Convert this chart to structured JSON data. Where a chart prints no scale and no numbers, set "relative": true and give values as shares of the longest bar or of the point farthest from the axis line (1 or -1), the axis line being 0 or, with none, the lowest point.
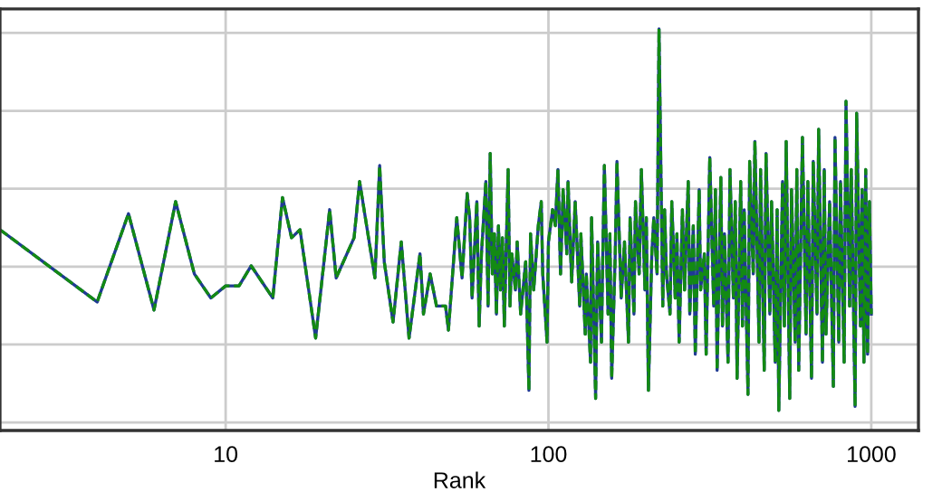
{
  "chart_data": {
    "type": "line",
    "xlabel": "Rank",
    "log": "x",
    "relative": true,
    "grid": true,
    "legend": false,
    "tick_labels": "x",
    "xlim": [
      2,
      1400
    ],
    "xticks": [
      10,
      100,
      1000
    ],
    "x": [
      2,
      4,
      5,
      6,
      7,
      8,
      9,
      10,
      11,
      12,
      14,
      15,
      16,
      17,
      19,
      21,
      22,
      25,
      26,
      29,
      30,
      31,
      33,
      35,
      37,
      40,
      41,
      43,
      45,
      48,
      49,
      52,
      54,
      56,
      57,
      58,
      60,
      61,
      62,
      64,
      65,
      66,
      67,
      68,
      69,
      70,
      71,
      72,
      73,
      75,
      76,
      77,
      79,
      80,
      82,
      85,
      87,
      88,
      90,
      93,
      95,
      96,
      99,
      100,
      103,
      105,
      107,
      109,
      111,
      114,
      115,
      118,
      121,
      125,
      126,
      130,
      131,
      135,
      136,
      140,
      142,
      146,
      147,
      149,
      153,
      155,
      157,
      161,
      163,
      168,
      172,
      177,
      179,
      184,
      186,
      191,
      194,
      199,
      201,
      204,
      209,
      212,
      217,
      220,
      226,
      229,
      232,
      238,
      241,
      247,
      250,
      254,
      260,
      264,
      271,
      274,
      281,
      285,
      293,
      296,
      304,
      308,
      316,
      325,
      329,
      333,
      342,
      346,
      351,
      360,
      365,
      374,
      379,
      384,
      394,
      399,
      404,
      415,
      420,
      431,
      436,
      449,
      454,
      466,
      472,
      485,
      491,
      504,
      511,
      517,
      531,
      538,
      545,
      559,
      566,
      581,
      588,
      596,
      612,
      628,
      636,
      653,
      661,
      679,
      687,
      706,
      715,
      724,
      743,
      763,
      772,
      793,
      803,
      824,
      835,
      857,
      867,
      891,
      901,
      926,
      937,
      949,
      961,
      974,
      987,
      1000
    ],
    "series": [
      {
        "color": "#1f3a93",
        "line_style": "solid",
        "values": [
          0.5,
          0.32,
          0.54,
          0.3,
          0.57,
          0.39,
          0.33,
          0.36,
          0.36,
          0.41,
          0.33,
          0.58,
          0.48,
          0.5,
          0.23,
          0.55,
          0.38,
          0.48,
          0.62,
          0.38,
          0.66,
          0.42,
          0.27,
          0.47,
          0.23,
          0.44,
          0.29,
          0.39,
          0.31,
          0.31,
          0.25,
          0.53,
          0.38,
          0.59,
          0.53,
          0.33,
          0.57,
          0.26,
          0.44,
          0.62,
          0.31,
          0.69,
          0.39,
          0.49,
          0.29,
          0.51,
          0.35,
          0.48,
          0.26,
          0.65,
          0.31,
          0.44,
          0.35,
          0.47,
          0.29,
          0.42,
          0.1,
          0.49,
          0.35,
          0.51,
          0.57,
          0.39,
          0.22,
          0.47,
          0.55,
          0.51,
          0.65,
          0.39,
          0.6,
          0.44,
          0.62,
          0.37,
          0.57,
          0.31,
          0.49,
          0.24,
          0.39,
          0.17,
          0.53,
          0.08,
          0.47,
          0.22,
          0.39,
          0.66,
          0.29,
          0.49,
          0.13,
          0.44,
          0.67,
          0.33,
          0.47,
          0.22,
          0.53,
          0.29,
          0.57,
          0.39,
          0.65,
          0.35,
          0.53,
          0.1,
          0.44,
          0.53,
          0.39,
          1.0,
          0.31,
          0.55,
          0.39,
          0.29,
          0.57,
          0.33,
          0.49,
          0.22,
          0.55,
          0.35,
          0.62,
          0.29,
          0.51,
          0.19,
          0.6,
          0.35,
          0.44,
          0.19,
          0.68,
          0.31,
          0.6,
          0.15,
          0.63,
          0.26,
          0.49,
          0.17,
          0.65,
          0.33,
          0.57,
          0.13,
          0.62,
          0.26,
          0.55,
          0.09,
          0.67,
          0.39,
          0.72,
          0.22,
          0.65,
          0.15,
          0.69,
          0.29,
          0.57,
          0.17,
          0.55,
          0.05,
          0.62,
          0.26,
          0.72,
          0.08,
          0.6,
          0.22,
          0.65,
          0.15,
          0.73,
          0.24,
          0.62,
          0.13,
          0.67,
          0.29,
          0.75,
          0.17,
          0.65,
          0.24,
          0.57,
          0.11,
          0.73,
          0.22,
          0.62,
          0.17,
          0.82,
          0.31,
          0.65,
          0.06,
          0.79,
          0.26,
          0.6,
          0.17,
          0.65,
          0.19,
          0.57,
          0.29
        ]
      },
      {
        "color": "#138a13",
        "line_style": "dashed",
        "values": [
          0.5,
          0.32,
          0.54,
          0.3,
          0.57,
          0.39,
          0.33,
          0.36,
          0.36,
          0.41,
          0.33,
          0.58,
          0.48,
          0.5,
          0.23,
          0.55,
          0.38,
          0.48,
          0.62,
          0.38,
          0.66,
          0.42,
          0.27,
          0.47,
          0.23,
          0.44,
          0.29,
          0.39,
          0.31,
          0.31,
          0.25,
          0.53,
          0.38,
          0.59,
          0.53,
          0.33,
          0.57,
          0.26,
          0.44,
          0.62,
          0.31,
          0.69,
          0.39,
          0.49,
          0.29,
          0.51,
          0.35,
          0.48,
          0.26,
          0.65,
          0.31,
          0.44,
          0.35,
          0.47,
          0.29,
          0.42,
          0.1,
          0.49,
          0.35,
          0.51,
          0.57,
          0.39,
          0.22,
          0.47,
          0.55,
          0.51,
          0.65,
          0.39,
          0.6,
          0.44,
          0.62,
          0.37,
          0.57,
          0.31,
          0.49,
          0.24,
          0.39,
          0.17,
          0.53,
          0.08,
          0.47,
          0.22,
          0.39,
          0.66,
          0.29,
          0.49,
          0.13,
          0.44,
          0.67,
          0.33,
          0.47,
          0.22,
          0.53,
          0.29,
          0.57,
          0.39,
          0.65,
          0.35,
          0.53,
          0.1,
          0.44,
          0.53,
          0.39,
          1.0,
          0.31,
          0.55,
          0.39,
          0.29,
          0.57,
          0.33,
          0.49,
          0.22,
          0.55,
          0.35,
          0.62,
          0.29,
          0.51,
          0.19,
          0.6,
          0.35,
          0.44,
          0.19,
          0.68,
          0.31,
          0.6,
          0.15,
          0.63,
          0.26,
          0.49,
          0.17,
          0.65,
          0.33,
          0.57,
          0.13,
          0.62,
          0.26,
          0.55,
          0.09,
          0.67,
          0.39,
          0.72,
          0.22,
          0.65,
          0.15,
          0.69,
          0.29,
          0.57,
          0.17,
          0.55,
          0.05,
          0.62,
          0.26,
          0.72,
          0.08,
          0.6,
          0.22,
          0.65,
          0.15,
          0.73,
          0.24,
          0.62,
          0.13,
          0.67,
          0.29,
          0.75,
          0.17,
          0.65,
          0.24,
          0.57,
          0.11,
          0.73,
          0.22,
          0.62,
          0.17,
          0.82,
          0.31,
          0.65,
          0.06,
          0.79,
          0.26,
          0.6,
          0.17,
          0.65,
          0.19,
          0.57,
          0.29
        ]
      }
    ]
  }
}
